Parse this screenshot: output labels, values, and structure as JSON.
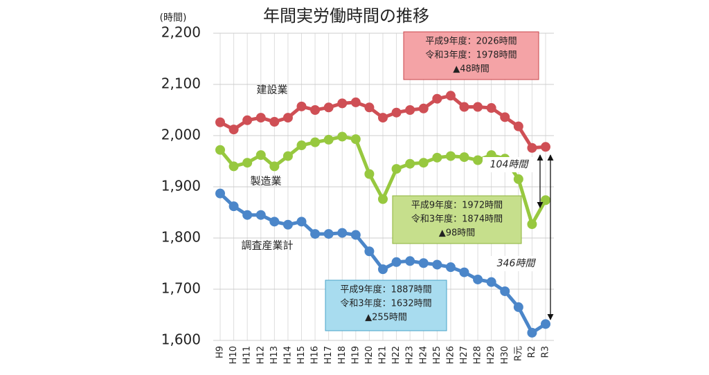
{
  "chart_data": {
    "type": "line",
    "title": "年間実労働時間の推移",
    "ylabel": "(時間)",
    "categories": [
      "H9",
      "H10",
      "H11",
      "H12",
      "H13",
      "H14",
      "H15",
      "H16",
      "H17",
      "H18",
      "H19",
      "H20",
      "H21",
      "H22",
      "H23",
      "H24",
      "H25",
      "H26",
      "H27",
      "H28",
      "H29",
      "H30",
      "R元",
      "R2",
      "R3"
    ],
    "series": [
      {
        "name": "建設業",
        "color": "#cf4f55",
        "values": [
          2026,
          2012,
          2030,
          2035,
          2027,
          2035,
          2057,
          2050,
          2055,
          2063,
          2065,
          2055,
          2035,
          2045,
          2050,
          2053,
          2072,
          2078,
          2056,
          2056,
          2054,
          2036,
          2018,
          1976,
          1978
        ]
      },
      {
        "name": "製造業",
        "color": "#97c83f",
        "values": [
          1972,
          1940,
          1947,
          1962,
          1940,
          1960,
          1981,
          1987,
          1992,
          1998,
          1993,
          1925,
          1876,
          1935,
          1945,
          1947,
          1957,
          1960,
          1958,
          1952,
          1962,
          1955,
          1915,
          1827,
          1874
        ]
      },
      {
        "name": "調査産業計",
        "color": "#4b86c9",
        "values": [
          1887,
          1862,
          1845,
          1845,
          1832,
          1826,
          1832,
          1808,
          1808,
          1810,
          1806,
          1774,
          1739,
          1753,
          1755,
          1751,
          1748,
          1743,
          1733,
          1719,
          1714,
          1696,
          1665,
          1615,
          1632
        ]
      }
    ],
    "ylim": [
      1600,
      2200
    ],
    "yticks": [
      {
        "value": 1600,
        "label": "1,600"
      },
      {
        "value": 1700,
        "label": "1,700"
      },
      {
        "value": 1800,
        "label": "1,800"
      },
      {
        "value": 1900,
        "label": "1,900"
      },
      {
        "value": 2000,
        "label": "2,000"
      },
      {
        "value": 2100,
        "label": "2,100"
      },
      {
        "value": 2200,
        "label": "2,200"
      }
    ],
    "grid": true,
    "callouts": [
      {
        "lines": [
          "平成9年度：2026時間",
          "令和3年度：1978時間",
          "▲48時間"
        ],
        "color": "#f4a3a6",
        "border": "#c9444a"
      },
      {
        "lines": [
          "平成9年度：1972時間",
          "令和3年度：1874時間",
          "▲98時間"
        ],
        "color": "#c6df8c",
        "border": "#8cb33a"
      },
      {
        "lines": [
          "平成9年度：1887時間",
          "令和3年度：1632時間",
          "▲255時間"
        ],
        "color": "#a8dcef",
        "border": "#4aa3c9"
      }
    ],
    "gap_labels": [
      "104時間",
      "346時間"
    ]
  }
}
